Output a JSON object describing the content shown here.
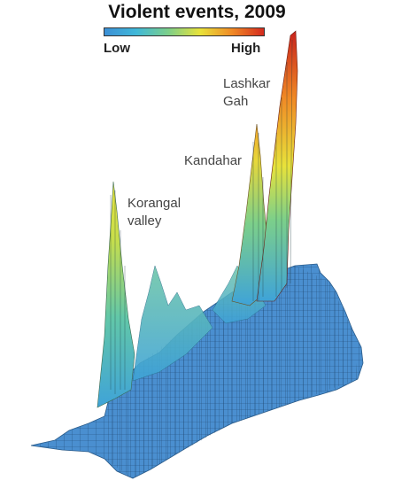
{
  "chart_data": {
    "type": "3d-surface",
    "title": "Violent events, 2009",
    "legend": {
      "low_label": "Low",
      "high_label": "High",
      "colors": [
        "#3c8fd6",
        "#3fb8d8",
        "#7ccf8a",
        "#e8e23a",
        "#f08a25",
        "#d42a1e"
      ]
    },
    "peaks": [
      {
        "name": "Korangal\nvalley",
        "relative_intensity": 0.45
      },
      {
        "name": "Kandahar",
        "relative_intensity": 0.55
      },
      {
        "name": "Lashkar\nGah",
        "relative_intensity": 1.0
      }
    ],
    "base_color": "#4a8fd0"
  }
}
